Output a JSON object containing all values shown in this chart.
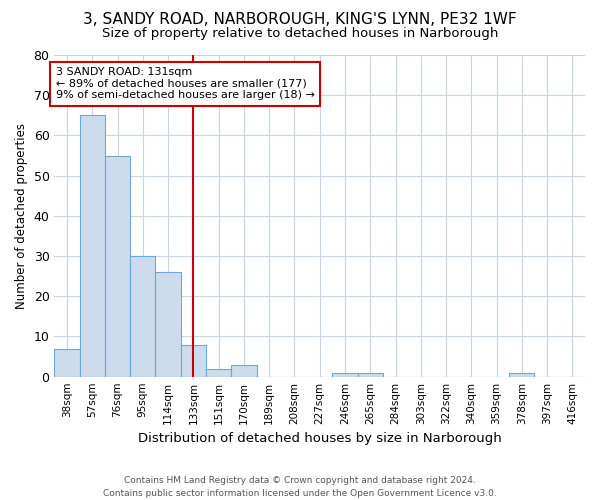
{
  "title_line1": "3, SANDY ROAD, NARBOROUGH, KING'S LYNN, PE32 1WF",
  "title_line2": "Size of property relative to detached houses in Narborough",
  "xlabel": "Distribution of detached houses by size in Narborough",
  "ylabel": "Number of detached properties",
  "footnote": "Contains HM Land Registry data © Crown copyright and database right 2024.\nContains public sector information licensed under the Open Government Licence v3.0.",
  "categories": [
    "38sqm",
    "57sqm",
    "76sqm",
    "95sqm",
    "114sqm",
    "133sqm",
    "151sqm",
    "170sqm",
    "189sqm",
    "208sqm",
    "227sqm",
    "246sqm",
    "265sqm",
    "284sqm",
    "303sqm",
    "322sqm",
    "340sqm",
    "359sqm",
    "378sqm",
    "397sqm",
    "416sqm"
  ],
  "values": [
    7,
    65,
    55,
    30,
    26,
    8,
    2,
    3,
    0,
    0,
    0,
    1,
    1,
    0,
    0,
    0,
    0,
    0,
    1,
    0,
    0
  ],
  "bar_color": "#ccdcec",
  "bar_edge_color": "#6aaad4",
  "highlight_index": 5,
  "highlight_color": "#cc0000",
  "ylim": [
    0,
    80
  ],
  "yticks": [
    0,
    10,
    20,
    30,
    40,
    50,
    60,
    70,
    80
  ],
  "annotation_title": "3 SANDY ROAD: 131sqm",
  "annotation_line1": "← 89% of detached houses are smaller (177)",
  "annotation_line2": "9% of semi-detached houses are larger (18) →",
  "annotation_box_color": "#ffffff",
  "annotation_box_edge_color": "#cc0000",
  "grid_color": "#c8d4e0",
  "background_color": "#ffffff",
  "title1_fontsize": 11,
  "title2_fontsize": 9.5
}
